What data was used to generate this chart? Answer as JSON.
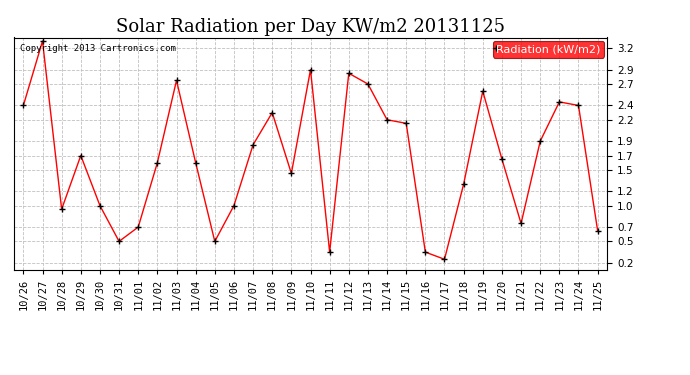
{
  "title": "Solar Radiation per Day KW/m2 20131125",
  "copyright_text": "Copyright 2013 Cartronics.com",
  "legend_label": "Radiation (kW/m2)",
  "dates": [
    "10/26",
    "10/27",
    "10/28",
    "10/29",
    "10/30",
    "10/31",
    "11/01",
    "11/02",
    "11/03",
    "11/04",
    "11/05",
    "11/06",
    "11/07",
    "11/08",
    "11/09",
    "11/10",
    "11/11",
    "11/12",
    "11/13",
    "11/14",
    "11/15",
    "11/16",
    "11/17",
    "11/18",
    "11/19",
    "11/20",
    "11/21",
    "11/22",
    "11/23",
    "11/24",
    "11/25"
  ],
  "values": [
    2.4,
    3.3,
    0.95,
    1.7,
    1.0,
    0.5,
    0.7,
    1.6,
    2.75,
    1.6,
    0.5,
    1.0,
    1.85,
    2.3,
    1.45,
    2.9,
    0.35,
    2.85,
    2.7,
    2.2,
    2.15,
    0.35,
    0.25,
    1.3,
    2.6,
    1.65,
    0.75,
    1.9,
    2.45,
    2.4,
    0.65
  ],
  "line_color": "#ff0000",
  "marker_color": "#000000",
  "background_color": "#ffffff",
  "grid_color": "#c0c0c0",
  "ylim_min": 0.1,
  "ylim_max": 3.35,
  "yticks": [
    0.2,
    0.5,
    0.7,
    1.0,
    1.2,
    1.5,
    1.7,
    1.9,
    2.2,
    2.4,
    2.7,
    2.9,
    3.2
  ],
  "title_fontsize": 13,
  "tick_fontsize": 7.5,
  "legend_fontsize": 8,
  "copyright_fontsize": 6.5
}
